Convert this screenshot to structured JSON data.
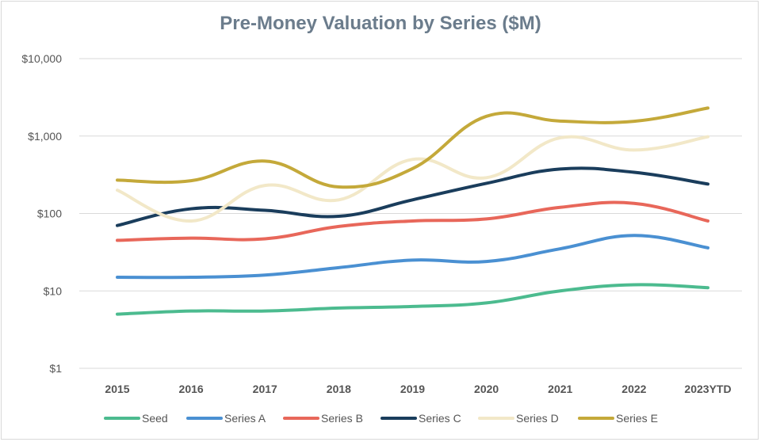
{
  "chart_data": {
    "type": "line",
    "title": "Pre-Money Valuation by Series ($M)",
    "yscale": "log",
    "ylim": [
      1,
      10000
    ],
    "ytick_values": [
      1,
      10,
      100,
      1000,
      10000
    ],
    "ytick_labels": [
      "$1",
      "$10",
      "$100",
      "$1,000",
      "$10,000"
    ],
    "categories": [
      "2015",
      "2016",
      "2017",
      "2018",
      "2019",
      "2020",
      "2021",
      "2022",
      "2023YTD"
    ],
    "grid": true,
    "legend_position": "bottom",
    "series": [
      {
        "name": "Seed",
        "color": "#4cbb8f",
        "values": [
          5,
          5.5,
          5.5,
          6,
          6.3,
          7,
          10,
          12,
          11
        ]
      },
      {
        "name": "Series A",
        "color": "#4a90d2",
        "values": [
          15,
          15,
          16,
          20,
          25,
          24,
          35,
          52,
          36
        ]
      },
      {
        "name": "Series B",
        "color": "#e8675a",
        "values": [
          45,
          48,
          47,
          68,
          80,
          85,
          120,
          135,
          80
        ]
      },
      {
        "name": "Series C",
        "color": "#1a3d5c",
        "values": [
          70,
          115,
          110,
          92,
          150,
          245,
          375,
          340,
          240
        ]
      },
      {
        "name": "Series D",
        "color": "#f2e8c8",
        "values": [
          200,
          80,
          230,
          150,
          500,
          290,
          950,
          660,
          980
        ]
      },
      {
        "name": "Series E",
        "color": "#c4a93a",
        "values": [
          270,
          265,
          475,
          220,
          380,
          1800,
          1560,
          1550,
          2300
        ]
      }
    ]
  }
}
